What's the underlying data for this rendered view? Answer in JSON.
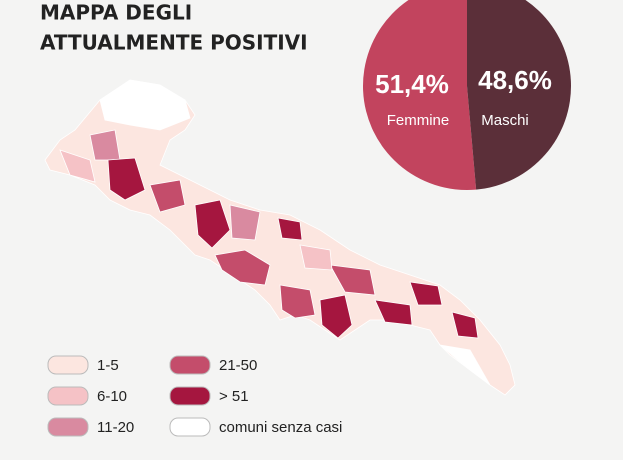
{
  "title": [
    "MAPPA DEGLI",
    "ATTUALMENTE POSITIVI"
  ],
  "chart_data": {
    "type": "pie",
    "slices": [
      {
        "name": "Femmine",
        "value": 51.4,
        "value_label": "51,4%",
        "color": "#c2445e"
      },
      {
        "name": "Maschi",
        "value": 48.6,
        "value_label": "48,6%",
        "color": "#5b2f39"
      }
    ]
  },
  "legend": [
    {
      "label": "1-5",
      "color": "#fce6e0"
    },
    {
      "label": "6-10",
      "color": "#f5c2c6"
    },
    {
      "label": "11-20",
      "color": "#d98aa0"
    },
    {
      "label": "21-50",
      "color": "#c44d6b"
    },
    {
      "label": "> 51",
      "color": "#a5163f"
    },
    {
      "label": "comuni senza casi",
      "color": "#ffffff"
    }
  ]
}
